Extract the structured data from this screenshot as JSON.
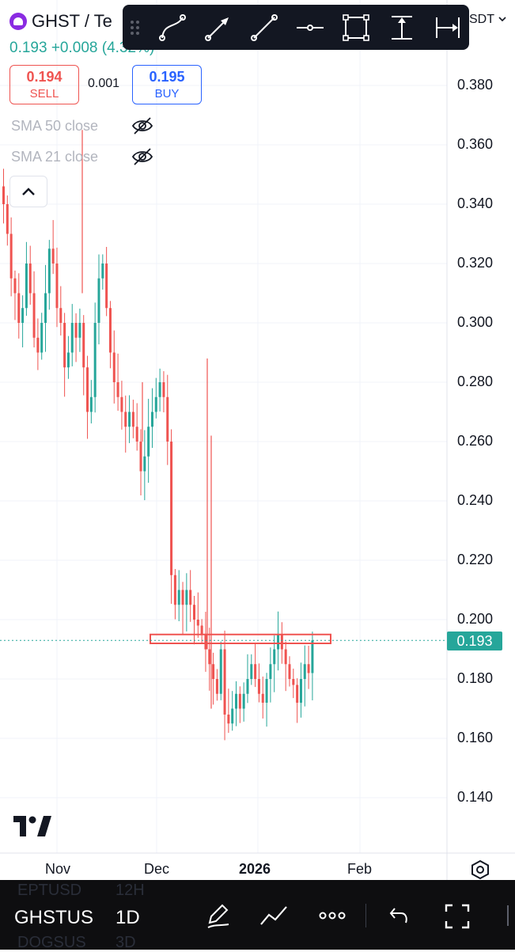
{
  "symbol": {
    "title": "GHST / Te",
    "last_price": "0.193",
    "change": "+0.008",
    "change_pct": "(4.32%)",
    "sell_price": "0.194",
    "sell_label": "SELL",
    "spread": "0.001",
    "buy_price": "0.195",
    "buy_label": "BUY",
    "quote_currency_fragment": "SDT"
  },
  "indicators": [
    {
      "label": "SMA 50 close",
      "visible": false
    },
    {
      "label": "SMA 21 close",
      "visible": false
    }
  ],
  "toolbar": {
    "tools": [
      "curve-icon",
      "arrow-icon",
      "trend-line-icon",
      "horizontal-ray-icon",
      "rectangle-icon",
      "price-range-icon",
      "date-range-icon"
    ]
  },
  "price_axis": {
    "labels": [
      "0.380",
      "0.360",
      "0.340",
      "0.320",
      "0.300",
      "0.280",
      "0.260",
      "0.240",
      "0.220",
      "0.200",
      "0.180",
      "0.160",
      "0.140"
    ],
    "current_price_badge": "0.193"
  },
  "time_axis": {
    "labels": [
      "Nov",
      "Dec",
      "2026",
      "Feb"
    ]
  },
  "bottom_bar": {
    "symbol_ghost_top": "EPTUSD",
    "interval_ghost_top": "12H",
    "symbol": "GHSTUS",
    "interval": "1D",
    "symbol_ghost_bottom": "DOGSUS",
    "interval_ghost_bottom": "3D"
  },
  "colors": {
    "up": "#26a69a",
    "down": "#ef5350",
    "buy": "#2962ff",
    "annotation_box": "#ef5350"
  },
  "chart_data": {
    "type": "candlestick",
    "title": "",
    "xlabel": "",
    "ylabel": "",
    "ylim": [
      0.125,
      0.405
    ],
    "x_ticks": [
      "Nov",
      "Dec",
      "2026",
      "Feb"
    ],
    "y_ticks": [
      0.38,
      0.36,
      0.34,
      0.32,
      0.3,
      0.28,
      0.26,
      0.24,
      0.22,
      0.2,
      0.18,
      0.16,
      0.14
    ],
    "last_price": 0.193,
    "resistance_zone": [
      0.192,
      0.195
    ],
    "close_series": [
      0.34,
      0.33,
      0.315,
      0.31,
      0.3,
      0.305,
      0.32,
      0.31,
      0.295,
      0.29,
      0.3,
      0.31,
      0.325,
      0.32,
      0.305,
      0.3,
      0.285,
      0.29,
      0.3,
      0.295,
      0.3,
      0.285,
      0.27,
      0.275,
      0.3,
      0.315,
      0.32,
      0.305,
      0.29,
      0.28,
      0.275,
      0.27,
      0.265,
      0.27,
      0.265,
      0.26,
      0.25,
      0.255,
      0.265,
      0.27,
      0.275,
      0.28,
      0.275,
      0.26,
      0.215,
      0.205,
      0.21,
      0.205,
      0.21,
      0.205,
      0.2,
      0.198,
      0.195,
      0.19,
      0.185,
      0.18,
      0.175,
      0.19,
      0.168,
      0.165,
      0.17,
      0.175,
      0.17,
      0.175,
      0.18,
      0.185,
      0.18,
      0.175,
      0.172,
      0.18,
      0.185,
      0.19,
      0.195,
      0.19,
      0.185,
      0.18,
      0.178,
      0.172,
      0.18,
      0.185,
      0.182,
      0.193
    ]
  }
}
